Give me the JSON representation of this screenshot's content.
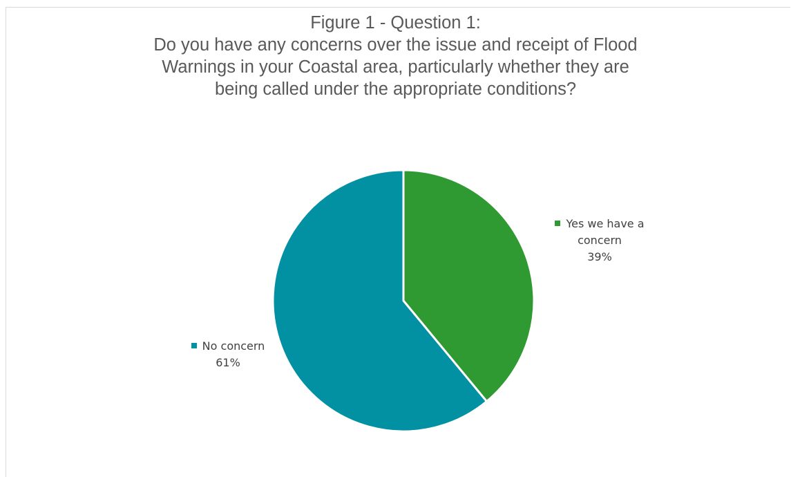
{
  "chart_data": {
    "type": "pie",
    "title": [
      "Figure 1 - Question 1:",
      "Do you have any concerns over the issue and receipt of Flood",
      "Warnings in your Coastal area, particularly whether they are",
      "being called under the appropriate conditions?"
    ],
    "slices": [
      {
        "label_lines": [
          "Yes we have a",
          "concern"
        ],
        "percent_label": "39%",
        "value": 39,
        "color": "#2e9a31"
      },
      {
        "label_lines": [
          "No concern"
        ],
        "percent_label": "61%",
        "value": 61,
        "color": "#0290a3"
      }
    ],
    "start_angle": "12 o'clock",
    "direction": "clockwise",
    "label_position": "outside",
    "legend": "none",
    "slice_border_color": "#ffffff"
  }
}
